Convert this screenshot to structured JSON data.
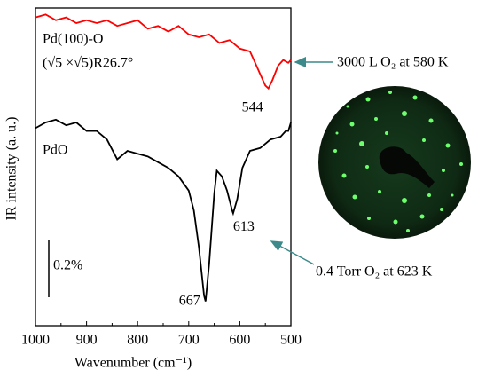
{
  "chart_data": {
    "type": "line",
    "x_label": "Wavenumber (cm⁻¹)",
    "y_label": "IR intensity (a. u.)",
    "xlim": [
      1000,
      500
    ],
    "xticks": [
      1000,
      900,
      800,
      700,
      600,
      500
    ],
    "ylim": [
      0,
      1.1
    ],
    "scale_bar": {
      "value": 0.2,
      "label": "0.2%"
    },
    "series": [
      {
        "name": "Pd(100)-O",
        "subtitle": "(√5 ×√5)R26.7°",
        "color": "#ff0000",
        "x": [
          1000,
          980,
          960,
          940,
          920,
          900,
          880,
          860,
          840,
          820,
          800,
          780,
          760,
          740,
          720,
          700,
          680,
          660,
          640,
          620,
          600,
          580,
          570,
          560,
          550,
          544,
          536,
          525,
          515,
          505,
          500
        ],
        "values": [
          1.07,
          1.08,
          1.06,
          1.07,
          1.05,
          1.06,
          1.05,
          1.06,
          1.04,
          1.05,
          1.06,
          1.03,
          1.04,
          1.02,
          1.04,
          1.01,
          1.0,
          1.01,
          0.98,
          0.99,
          0.96,
          0.95,
          0.91,
          0.87,
          0.83,
          0.82,
          0.85,
          0.9,
          0.92,
          0.91,
          0.92
        ],
        "peaks": [
          544
        ],
        "annotation": "3000 L O₂ at 580 K"
      },
      {
        "name": "PdO",
        "color": "#000000",
        "x": [
          1000,
          980,
          960,
          940,
          920,
          900,
          880,
          860,
          840,
          820,
          800,
          780,
          760,
          740,
          720,
          700,
          690,
          680,
          670,
          667,
          660,
          650,
          645,
          635,
          625,
          615,
          613,
          605,
          595,
          580,
          560,
          540,
          520,
          510,
          505,
          500
        ],
        "values": [
          0.68,
          0.7,
          0.71,
          0.69,
          0.7,
          0.67,
          0.67,
          0.64,
          0.57,
          0.6,
          0.59,
          0.58,
          0.56,
          0.54,
          0.51,
          0.46,
          0.39,
          0.26,
          0.09,
          0.07,
          0.2,
          0.45,
          0.53,
          0.51,
          0.46,
          0.39,
          0.38,
          0.43,
          0.54,
          0.6,
          0.61,
          0.64,
          0.65,
          0.67,
          0.67,
          0.7
        ],
        "peaks": [
          667,
          613
        ],
        "annotation": "0.4 Torr O₂ at 623 K"
      }
    ]
  }
}
